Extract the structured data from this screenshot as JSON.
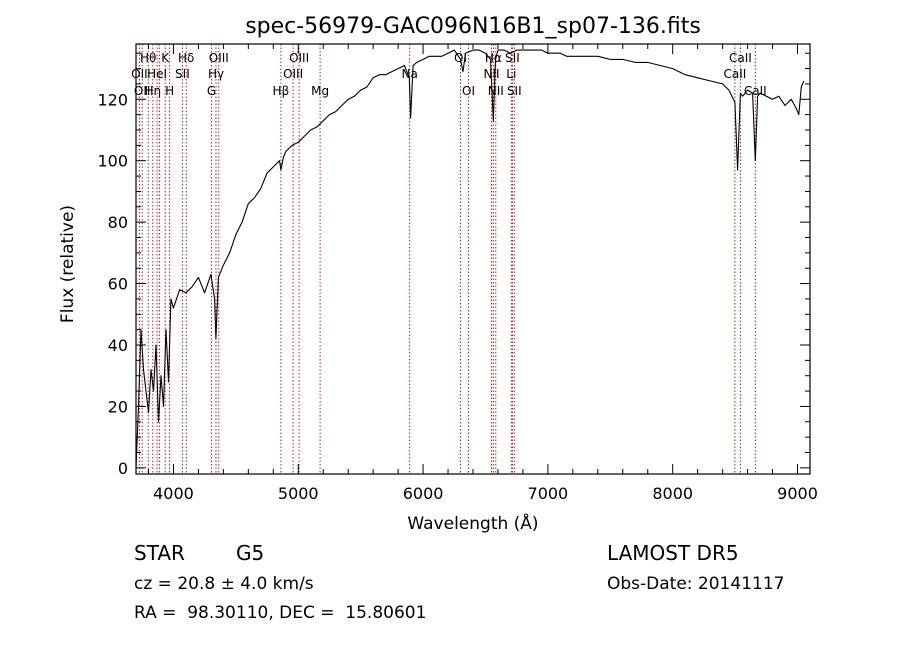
{
  "chart_data": {
    "type": "line",
    "title": "spec-56979-GAC096N16B1_sp07-136.fits",
    "xlabel": "Wavelength (Å)",
    "ylabel": "Flux (relative)",
    "xlim": [
      3700,
      9100
    ],
    "ylim": [
      -2,
      138
    ],
    "xticks": [
      4000,
      5000,
      6000,
      7000,
      8000,
      9000
    ],
    "yticks": [
      0,
      20,
      40,
      60,
      80,
      100,
      120
    ],
    "grid": false,
    "line_color": "#000000",
    "marker_color": "#cc0000",
    "series": [
      {
        "x": [
          3700,
          3720,
          3740,
          3760,
          3780,
          3800,
          3820,
          3840,
          3860,
          3880,
          3900,
          3920,
          3940,
          3960,
          3980,
          4000,
          4050,
          4100,
          4150,
          4200,
          4250,
          4300,
          4330,
          4340,
          4360,
          4400,
          4450,
          4500,
          4550,
          4600,
          4650,
          4700,
          4750,
          4800,
          4850,
          4861,
          4880,
          4900,
          4950,
          5000,
          5050,
          5100,
          5150,
          5200,
          5250,
          5300,
          5350,
          5400,
          5450,
          5500,
          5550,
          5600,
          5650,
          5700,
          5750,
          5800,
          5850,
          5890,
          5900,
          5920,
          5950,
          6000,
          6050,
          6100,
          6150,
          6200,
          6250,
          6300,
          6320,
          6340,
          6400,
          6450,
          6500,
          6540,
          6563,
          6580,
          6600,
          6650,
          6700,
          6750,
          6800,
          6850,
          6900,
          6950,
          7000,
          7050,
          7100,
          7150,
          7200,
          7300,
          7400,
          7500,
          7600,
          7700,
          7800,
          7900,
          8000,
          8100,
          8200,
          8300,
          8400,
          8450,
          8498,
          8520,
          8542,
          8560,
          8600,
          8640,
          8662,
          8680,
          8700,
          8750,
          8800,
          8850,
          8900,
          8950,
          8990,
          9010,
          9030,
          9050
        ],
        "y": [
          0,
          20,
          45,
          32,
          25,
          18,
          32,
          25,
          40,
          15,
          30,
          20,
          45,
          28,
          55,
          52,
          58,
          57,
          59,
          62,
          57,
          63,
          55,
          42,
          62,
          66,
          70,
          76,
          80,
          86,
          88,
          91,
          96,
          98,
          100,
          97,
          101,
          103,
          105,
          106,
          108,
          110,
          111,
          113,
          115,
          116,
          118,
          120,
          121,
          123,
          124,
          127,
          128,
          128,
          129,
          130,
          131,
          127,
          114,
          131,
          132,
          133,
          134,
          134,
          134,
          135,
          136,
          133,
          129,
          135,
          136,
          136,
          135,
          133,
          113,
          133,
          136,
          136,
          135,
          136,
          136,
          136,
          136,
          136,
          135,
          135,
          135,
          134,
          134,
          134,
          134,
          133,
          133,
          132,
          132,
          131,
          130,
          128,
          127,
          126,
          125,
          123,
          119,
          97,
          122,
          121,
          123,
          122,
          100,
          121,
          122,
          121,
          120,
          121,
          118,
          120,
          117,
          115,
          124,
          126
        ]
      }
    ],
    "lines": [
      {
        "wave": 3727,
        "labels": [
          "OII"
        ]
      },
      {
        "wave": 3750,
        "labels": [
          "OII"
        ]
      },
      {
        "wave": 3798,
        "labels": [
          "Hθ"
        ]
      },
      {
        "wave": 3835,
        "labels": [
          "Hη"
        ]
      },
      {
        "wave": 3869,
        "labels": [
          "HeI"
        ]
      },
      {
        "wave": 3889,
        "labels": [
          ""
        ]
      },
      {
        "wave": 3934,
        "labels": [
          "K"
        ]
      },
      {
        "wave": 3969,
        "labels": [
          "H"
        ]
      },
      {
        "wave": 4072,
        "labels": [
          "SII"
        ]
      },
      {
        "wave": 4102,
        "labels": [
          "Hδ"
        ]
      },
      {
        "wave": 4305,
        "labels": [
          "G"
        ]
      },
      {
        "wave": 4341,
        "labels": [
          "Hγ"
        ]
      },
      {
        "wave": 4363,
        "labels": [
          "OIII"
        ]
      },
      {
        "wave": 4861,
        "labels": [
          "Hβ"
        ]
      },
      {
        "wave": 4959,
        "labels": [
          "OIII"
        ]
      },
      {
        "wave": 5007,
        "labels": [
          "OIII"
        ]
      },
      {
        "wave": 5175,
        "labels": [
          "Mg"
        ]
      },
      {
        "wave": 5893,
        "labels": [
          "Na"
        ]
      },
      {
        "wave": 6300,
        "labels": [
          "OI"
        ]
      },
      {
        "wave": 6364,
        "labels": [
          "OI"
        ]
      },
      {
        "wave": 6548,
        "labels": [
          "NII"
        ]
      },
      {
        "wave": 6563,
        "labels": [
          "Hα"
        ]
      },
      {
        "wave": 6583,
        "labels": [
          "NII"
        ]
      },
      {
        "wave": 6707,
        "labels": [
          "Li"
        ]
      },
      {
        "wave": 6716,
        "labels": [
          "SII"
        ]
      },
      {
        "wave": 6731,
        "labels": [
          "SII"
        ]
      },
      {
        "wave": 8498,
        "labels": [
          "CaII"
        ]
      },
      {
        "wave": 8542,
        "labels": [
          "CaII"
        ]
      },
      {
        "wave": 8662,
        "labels": [
          "CaII"
        ]
      }
    ],
    "line_labels": [
      {
        "text": "Hθ",
        "wave": 3798,
        "row": 1
      },
      {
        "text": "K",
        "wave": 3934,
        "row": 1
      },
      {
        "text": "Hδ",
        "wave": 4102,
        "row": 1
      },
      {
        "text": "OIII",
        "wave": 4363,
        "row": 1
      },
      {
        "text": "OIII",
        "wave": 5007,
        "row": 1
      },
      {
        "text": "OI",
        "wave": 6300,
        "row": 1
      },
      {
        "text": "Hα",
        "wave": 6563,
        "row": 1
      },
      {
        "text": "SII",
        "wave": 6716,
        "row": 1
      },
      {
        "text": "CaII",
        "wave": 8542,
        "row": 1
      },
      {
        "text": "OII",
        "wave": 3727,
        "row": 2
      },
      {
        "text": "HeI",
        "wave": 3869,
        "row": 2
      },
      {
        "text": "SII",
        "wave": 4072,
        "row": 2
      },
      {
        "text": "Hγ",
        "wave": 4341,
        "row": 2
      },
      {
        "text": "OIII",
        "wave": 4959,
        "row": 2
      },
      {
        "text": "Na",
        "wave": 5893,
        "row": 2
      },
      {
        "text": "NII",
        "wave": 6548,
        "row": 2
      },
      {
        "text": "Li",
        "wave": 6707,
        "row": 2
      },
      {
        "text": "CaII",
        "wave": 8498,
        "row": 2
      },
      {
        "text": "OII",
        "wave": 3750,
        "row": 3
      },
      {
        "text": "Hη",
        "wave": 3835,
        "row": 3
      },
      {
        "text": "H",
        "wave": 3969,
        "row": 3
      },
      {
        "text": "G",
        "wave": 4305,
        "row": 3
      },
      {
        "text": "Hβ",
        "wave": 4861,
        "row": 3
      },
      {
        "text": "Mg",
        "wave": 5175,
        "row": 3
      },
      {
        "text": "OI",
        "wave": 6364,
        "row": 3
      },
      {
        "text": "NII",
        "wave": 6583,
        "row": 3
      },
      {
        "text": "SII",
        "wave": 6731,
        "row": 3
      },
      {
        "text": "CaII",
        "wave": 8662,
        "row": 3
      }
    ]
  },
  "info": {
    "class": "STAR",
    "subclass": "G5",
    "survey": "LAMOST DR5",
    "cz": "cz = 20.8 ± 4.0 km/s",
    "obs_date": "Obs-Date: 20141117",
    "radec": "RA =  98.30110, DEC =  15.80601"
  }
}
